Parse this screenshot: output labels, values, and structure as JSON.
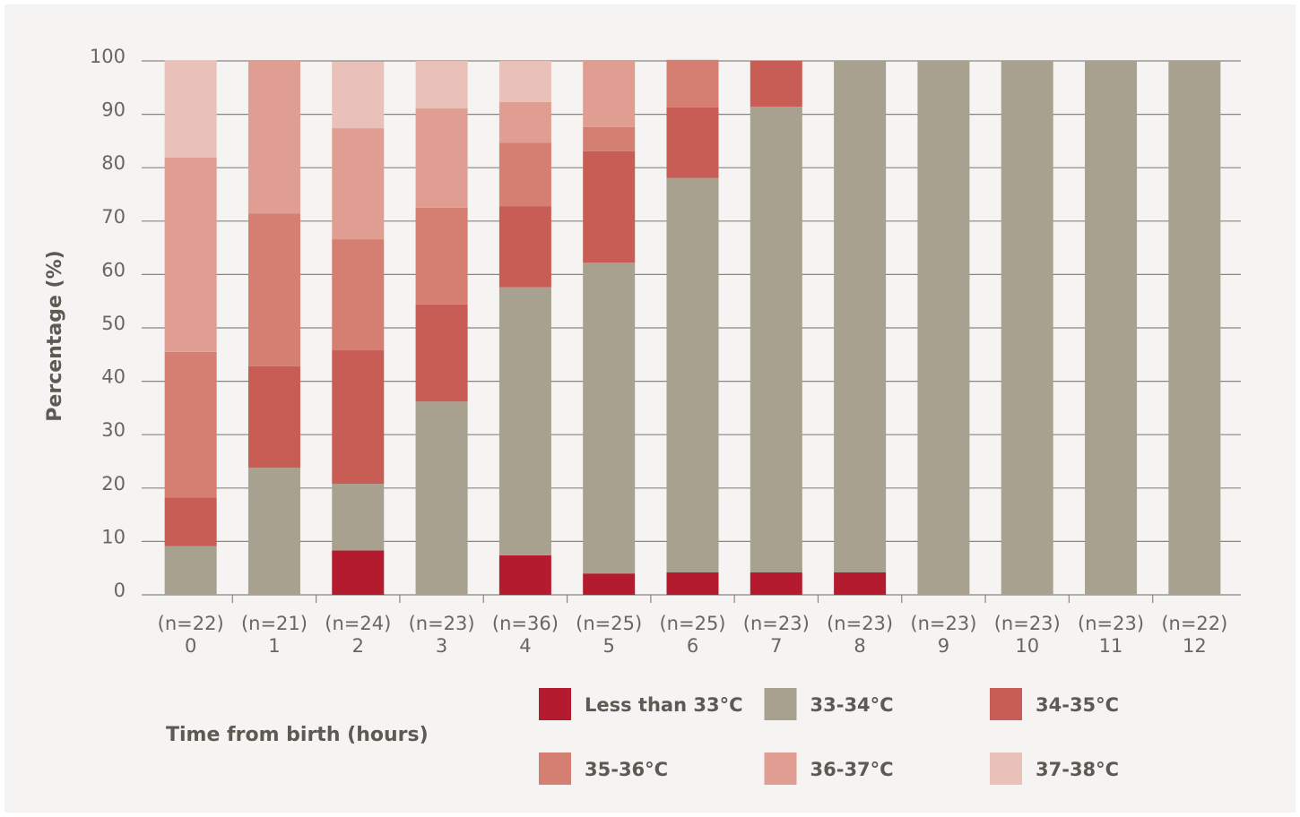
{
  "chart_data": {
    "type": "stacked_bar",
    "ylabel": "Percentage (%)",
    "xlabel": "Time from birth (hours)",
    "categories": [
      "0",
      "1",
      "2",
      "3",
      "4",
      "5",
      "6",
      "7",
      "8",
      "9",
      "10",
      "11",
      "12"
    ],
    "sample_sizes": [
      "(n=22)",
      "(n=21)",
      "(n=24)",
      "(n=23)",
      "(n=36)",
      "(n=25)",
      "(n=25)",
      "(n=23)",
      "(n=23)",
      "(n=23)",
      "(n=23)",
      "(n=23)",
      "(n=22)"
    ],
    "series": [
      {
        "name": "Less than 33°C",
        "color": "#b51b2f",
        "values": [
          0,
          0,
          8.3,
          0,
          7.4,
          4,
          4.2,
          4.2,
          4.2,
          0,
          0,
          0,
          0
        ]
      },
      {
        "name": "33-34°C",
        "color": "#a8a18f",
        "values": [
          9.1,
          23.8,
          12.5,
          36.2,
          50.2,
          58.2,
          73.9,
          87.2,
          95.8,
          100,
          100,
          100,
          100
        ]
      },
      {
        "name": "34-35°C",
        "color": "#c85d55",
        "values": [
          9.1,
          19.0,
          25.0,
          18.2,
          15.2,
          20.9,
          13.2,
          8.6,
          0,
          0,
          0,
          0,
          0
        ]
      },
      {
        "name": "35-36°C",
        "color": "#d47f71",
        "values": [
          27.3,
          28.6,
          20.8,
          18.1,
          11.9,
          4.5,
          8.9,
          0,
          0,
          0,
          0,
          0,
          0
        ]
      },
      {
        "name": "36-37°C",
        "color": "#e09e92",
        "values": [
          36.4,
          28.6,
          20.8,
          18.6,
          7.6,
          12.4,
          0,
          0,
          0,
          0,
          0,
          0,
          0
        ]
      },
      {
        "name": "37-38°C",
        "color": "#e9c1b8",
        "values": [
          18.2,
          0,
          12.5,
          8.9,
          7.7,
          0,
          0,
          0,
          0,
          0,
          0,
          0,
          0
        ]
      }
    ],
    "ylim": [
      0,
      100
    ],
    "yticks": [
      0,
      10,
      20,
      30,
      40,
      50,
      60,
      70,
      80,
      90,
      100
    ],
    "grid": true
  }
}
